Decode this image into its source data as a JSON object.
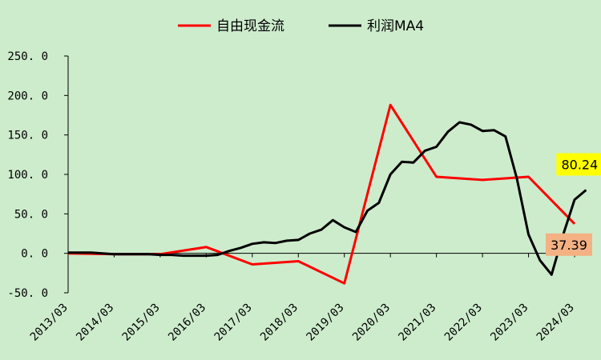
{
  "chart_data": {
    "type": "line",
    "ylim": [
      -50,
      250
    ],
    "yticks": [
      "250. 0",
      "200. 0",
      "150. 0",
      "100. 0",
      "50. 0",
      "0. 0",
      "-50. 0"
    ],
    "ytick_values": [
      250,
      200,
      150,
      100,
      50,
      0,
      -50
    ],
    "xlim": [
      2013.0,
      2024.0
    ],
    "xticks": [
      "2013/03",
      "2014/03",
      "2015/03",
      "2016/03",
      "2017/03",
      "2018/03",
      "2019/03",
      "2020/03",
      "2021/03",
      "2022/03",
      "2023/03",
      "2024/03"
    ],
    "xtick_values": [
      2013,
      2014,
      2015,
      2016,
      2017,
      2018,
      2019,
      2020,
      2021,
      2022,
      2023,
      2024
    ],
    "legend_position": "top-center",
    "grid": false,
    "series": [
      {
        "name": "自由现金流",
        "color": "#ff0000",
        "points": [
          [
            2013.0,
            0
          ],
          [
            2014.0,
            -1
          ],
          [
            2015.0,
            -1
          ],
          [
            2016.0,
            8
          ],
          [
            2017.0,
            -14
          ],
          [
            2018.0,
            -10
          ],
          [
            2019.0,
            -38
          ],
          [
            2020.0,
            188
          ],
          [
            2021.0,
            97
          ],
          [
            2022.0,
            93
          ],
          [
            2023.0,
            97
          ],
          [
            2024.0,
            37.39
          ]
        ]
      },
      {
        "name": "利润MA4",
        "color": "#000000",
        "points": [
          [
            2013.0,
            1
          ],
          [
            2013.25,
            1
          ],
          [
            2013.5,
            1
          ],
          [
            2013.75,
            0
          ],
          [
            2014.0,
            -1
          ],
          [
            2014.25,
            -1
          ],
          [
            2014.5,
            -1
          ],
          [
            2014.75,
            -1
          ],
          [
            2015.0,
            -2
          ],
          [
            2015.25,
            -2
          ],
          [
            2015.5,
            -3
          ],
          [
            2015.75,
            -3
          ],
          [
            2016.0,
            -3
          ],
          [
            2016.25,
            -2
          ],
          [
            2016.5,
            3
          ],
          [
            2016.75,
            7
          ],
          [
            2017.0,
            12
          ],
          [
            2017.25,
            14
          ],
          [
            2017.5,
            13
          ],
          [
            2017.75,
            16
          ],
          [
            2018.0,
            17
          ],
          [
            2018.25,
            25
          ],
          [
            2018.5,
            30
          ],
          [
            2018.75,
            42
          ],
          [
            2019.0,
            33
          ],
          [
            2019.25,
            27
          ],
          [
            2019.5,
            54
          ],
          [
            2019.75,
            64
          ],
          [
            2020.0,
            100
          ],
          [
            2020.25,
            116
          ],
          [
            2020.5,
            115
          ],
          [
            2020.75,
            130
          ],
          [
            2021.0,
            135
          ],
          [
            2021.25,
            154
          ],
          [
            2021.5,
            166
          ],
          [
            2021.75,
            163
          ],
          [
            2022.0,
            155
          ],
          [
            2022.25,
            156
          ],
          [
            2022.5,
            148
          ],
          [
            2022.75,
            94
          ],
          [
            2023.0,
            24
          ],
          [
            2023.25,
            -9
          ],
          [
            2023.5,
            -27
          ],
          [
            2023.75,
            23
          ],
          [
            2024.0,
            68
          ],
          [
            2024.25,
            80.24
          ]
        ]
      }
    ],
    "labels": [
      {
        "text": "80.24",
        "series": 1,
        "background": "#ffff00"
      },
      {
        "text": "37.39",
        "series": 0,
        "background": "#f4b183"
      }
    ]
  }
}
